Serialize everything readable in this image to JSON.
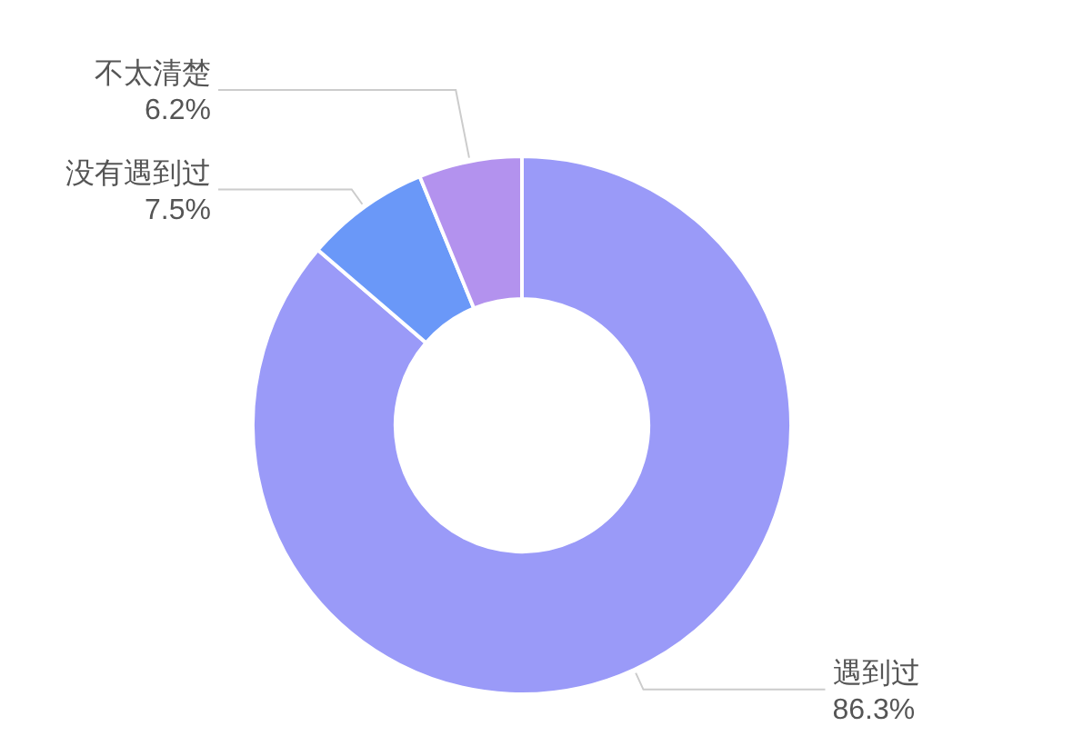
{
  "chart_data": {
    "type": "donut",
    "categories": [
      "遇到过",
      "没有遇到过",
      "不太清楚"
    ],
    "values": [
      86.3,
      7.5,
      6.2
    ],
    "value_labels": [
      "86.3%",
      "7.5%",
      "6.2%"
    ],
    "colors": [
      "#9a9af8",
      "#6a98f8",
      "#b392ee"
    ]
  }
}
